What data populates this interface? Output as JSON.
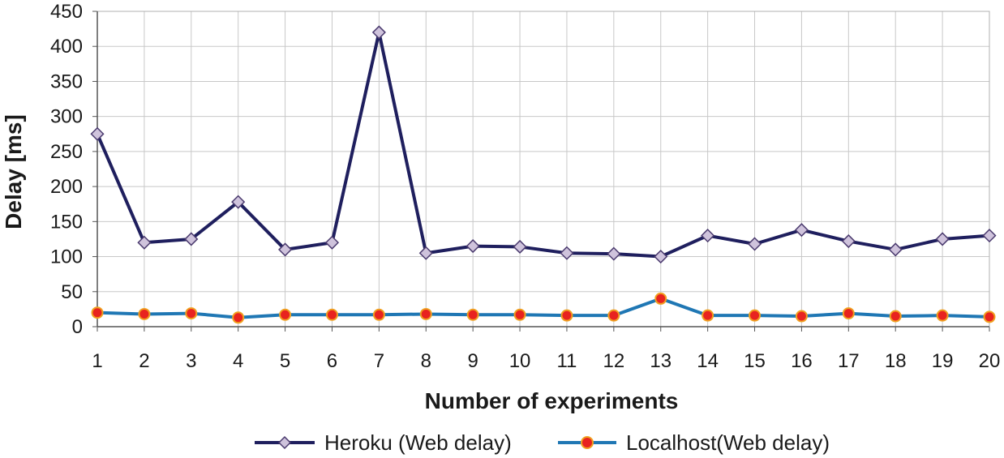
{
  "chart_data": {
    "type": "line",
    "title": "",
    "xlabel": "Number of experiments",
    "ylabel": "Delay [ms]",
    "x": [
      1,
      2,
      3,
      4,
      5,
      6,
      7,
      8,
      9,
      10,
      11,
      12,
      13,
      14,
      15,
      16,
      17,
      18,
      19,
      20
    ],
    "ylim": [
      0,
      450
    ],
    "yticks": [
      0,
      50,
      100,
      150,
      200,
      250,
      300,
      350,
      400,
      450
    ],
    "grid": true,
    "legend_position": "bottom",
    "series": [
      {
        "name": "Heroku (Web delay)",
        "color": "#1f1f5e",
        "marker": "diamond",
        "marker_color": "#cfc3dc",
        "values": [
          275,
          120,
          125,
          178,
          110,
          120,
          420,
          105,
          115,
          114,
          105,
          104,
          100,
          130,
          118,
          138,
          122,
          110,
          125,
          130
        ]
      },
      {
        "name": "Localhost(Web delay)",
        "color": "#1f77b4",
        "marker": "circle",
        "marker_color": "#e8231f",
        "values": [
          20,
          18,
          19,
          13,
          17,
          17,
          17,
          18,
          17,
          17,
          16,
          16,
          40,
          16,
          16,
          15,
          19,
          15,
          16,
          14
        ]
      }
    ]
  }
}
